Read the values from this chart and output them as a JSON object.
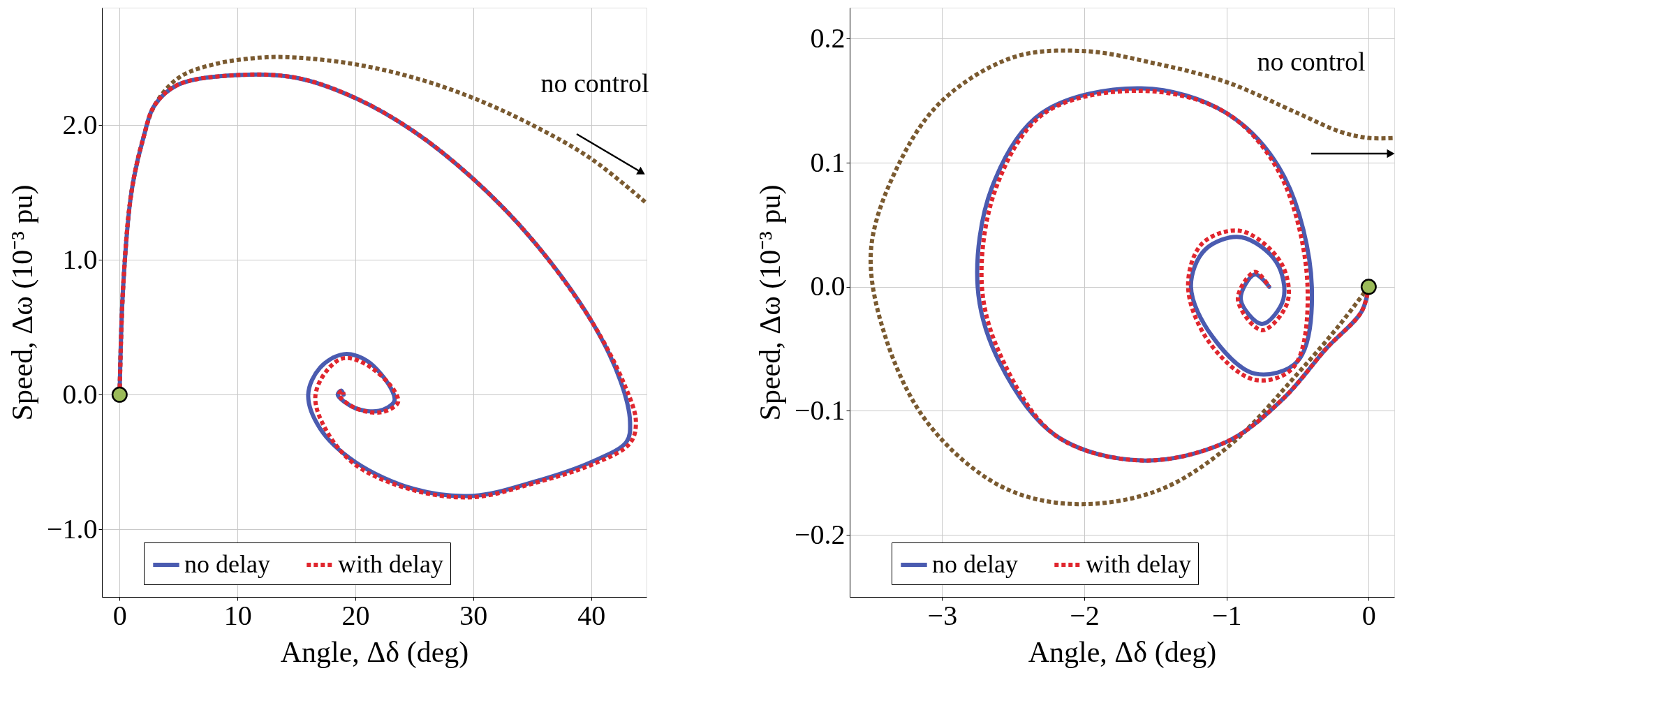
{
  "chart_data": [
    {
      "type": "line",
      "xlabel": "Angle, Δδ (deg)",
      "ylabel": "Speed, Δω (10⁻³ pu)",
      "xlim": [
        -1.5,
        44.7
      ],
      "ylim": [
        -1.5,
        2.87
      ],
      "xticks": [
        0,
        10,
        20,
        30,
        40
      ],
      "yticks": [
        {
          "value": -1,
          "label": "−1.0"
        },
        {
          "value": 0,
          "label": "0.0"
        },
        {
          "value": 1,
          "label": "1.0"
        },
        {
          "value": 2,
          "label": "2.0"
        }
      ],
      "grid": true,
      "legend": "bottom",
      "series": [
        {
          "color": "#7a5a30",
          "line_style": "dotted",
          "x": [
            0,
            0.3,
            1,
            2,
            3,
            5,
            8,
            12,
            15,
            20,
            25,
            30,
            35,
            40,
            44.7
          ],
          "values": [
            0,
            0.8,
            1.5,
            1.9,
            2.15,
            2.35,
            2.45,
            2.5,
            2.5,
            2.45,
            2.35,
            2.2,
            2.0,
            1.75,
            1.42
          ]
        },
        {
          "name": "no delay",
          "color": "#4a5bb0",
          "line_style": "solid",
          "x": [
            0,
            0.3,
            1,
            2,
            3,
            5,
            10,
            15,
            20,
            25,
            30,
            35,
            40,
            42.5,
            43.3,
            43,
            40,
            35,
            30,
            25,
            20,
            17,
            16,
            17,
            19,
            21,
            23,
            23.3,
            22,
            20,
            18.5,
            18.8,
            19
          ],
          "values": [
            0,
            0.8,
            1.5,
            1.9,
            2.15,
            2.3,
            2.37,
            2.35,
            2.2,
            1.95,
            1.6,
            1.15,
            0.55,
            0.1,
            -0.2,
            -0.35,
            -0.5,
            -0.65,
            -0.75,
            -0.7,
            -0.5,
            -0.25,
            0,
            0.2,
            0.3,
            0.25,
            0.05,
            -0.05,
            -0.12,
            -0.1,
            0,
            0.03,
            0
          ]
        },
        {
          "name": "with delay",
          "color": "#e0262e",
          "line_style": "dotted",
          "x": [
            0,
            0.3,
            1,
            2,
            3,
            5,
            10,
            15,
            20,
            25,
            30,
            35,
            40,
            42.8,
            43.8,
            43.3,
            40.3,
            35,
            30,
            25,
            20,
            17.5,
            16.6,
            17.5,
            19,
            21,
            23.3,
            23.6,
            22.2,
            20,
            18.6,
            18.9,
            19
          ],
          "values": [
            0,
            0.8,
            1.5,
            1.9,
            2.15,
            2.3,
            2.37,
            2.35,
            2.2,
            1.95,
            1.6,
            1.15,
            0.55,
            0.08,
            -0.2,
            -0.36,
            -0.51,
            -0.66,
            -0.76,
            -0.71,
            -0.52,
            -0.26,
            -0.02,
            0.17,
            0.27,
            0.22,
            0.03,
            -0.06,
            -0.13,
            -0.1,
            0,
            0.03,
            0
          ]
        },
        {
          "type": "scatter",
          "marker": "circle",
          "color": "#9bbb59",
          "x": [
            0
          ],
          "values": [
            0
          ]
        }
      ],
      "annotations": [
        "no control"
      ]
    },
    {
      "type": "line",
      "xlabel": "Angle, Δδ (deg)",
      "ylabel": "Speed, Δω (10⁻³ pu)",
      "xlim": [
        -3.65,
        0.18
      ],
      "ylim": [
        -0.25,
        0.225
      ],
      "xticks": [
        {
          "value": -3,
          "label": "−3"
        },
        {
          "value": -2,
          "label": "−2"
        },
        {
          "value": -1,
          "label": "−1"
        },
        {
          "value": 0,
          "label": "0"
        }
      ],
      "yticks": [
        {
          "value": -0.2,
          "label": "−0.2"
        },
        {
          "value": -0.1,
          "label": "−0.1"
        },
        {
          "value": 0,
          "label": "0.0"
        },
        {
          "value": 0.1,
          "label": "0.1"
        },
        {
          "value": 0.2,
          "label": "0.2"
        }
      ],
      "grid": true,
      "legend": "bottom",
      "series": [
        {
          "color": "#7a5a30",
          "line_style": "dotted",
          "x": [
            0,
            -0.2,
            -0.5,
            -1,
            -1.5,
            -2.1,
            -2.6,
            -3.1,
            -3.4,
            -3.5,
            -3.3,
            -3.0,
            -2.5,
            -2,
            -1.5,
            -1,
            -0.5,
            -0.2,
            0,
            0.18
          ],
          "values": [
            0,
            -0.03,
            -0.07,
            -0.13,
            -0.165,
            -0.175,
            -0.16,
            -0.11,
            -0.04,
            0.03,
            0.1,
            0.15,
            0.185,
            0.19,
            0.18,
            0.165,
            0.14,
            0.125,
            0.12,
            0.12
          ]
        },
        {
          "name": "no delay",
          "color": "#4a5bb0",
          "line_style": "solid",
          "x": [
            0,
            -0.05,
            -0.3,
            -0.6,
            -1,
            -1.6,
            -2.2,
            -2.6,
            -2.75,
            -2.65,
            -2.3,
            -1.6,
            -1,
            -0.6,
            -0.4,
            -0.5,
            -0.8,
            -1.1,
            -1.25,
            -1.15,
            -0.9,
            -0.65,
            -0.6,
            -0.75,
            -0.9,
            -0.8,
            -0.7
          ],
          "values": [
            0,
            -0.02,
            -0.05,
            -0.09,
            -0.125,
            -0.14,
            -0.12,
            -0.06,
            0,
            0.08,
            0.14,
            0.16,
            0.14,
            0.09,
            0,
            -0.06,
            -0.07,
            -0.04,
            0,
            0.03,
            0.04,
            0.02,
            -0.01,
            -0.03,
            -0.01,
            0.01,
            0
          ]
        },
        {
          "name": "with delay",
          "color": "#e0262e",
          "line_style": "dotted",
          "x": [
            0,
            -0.05,
            -0.3,
            -0.6,
            -1,
            -1.6,
            -2.2,
            -2.57,
            -2.72,
            -2.62,
            -2.28,
            -1.6,
            -1,
            -0.62,
            -0.43,
            -0.53,
            -0.8,
            -1.12,
            -1.27,
            -1.17,
            -0.9,
            -0.62,
            -0.57,
            -0.75,
            -0.92,
            -0.8,
            -0.7
          ],
          "values": [
            0,
            -0.02,
            -0.05,
            -0.09,
            -0.125,
            -0.14,
            -0.12,
            -0.06,
            0,
            0.08,
            0.14,
            0.158,
            0.14,
            0.09,
            0,
            -0.065,
            -0.075,
            -0.045,
            0,
            0.035,
            0.045,
            0.02,
            -0.012,
            -0.035,
            -0.01,
            0.012,
            0
          ]
        },
        {
          "type": "scatter",
          "marker": "circle",
          "color": "#9bbb59",
          "x": [
            0
          ],
          "values": [
            0
          ]
        }
      ],
      "annotations": [
        "no control"
      ]
    }
  ]
}
